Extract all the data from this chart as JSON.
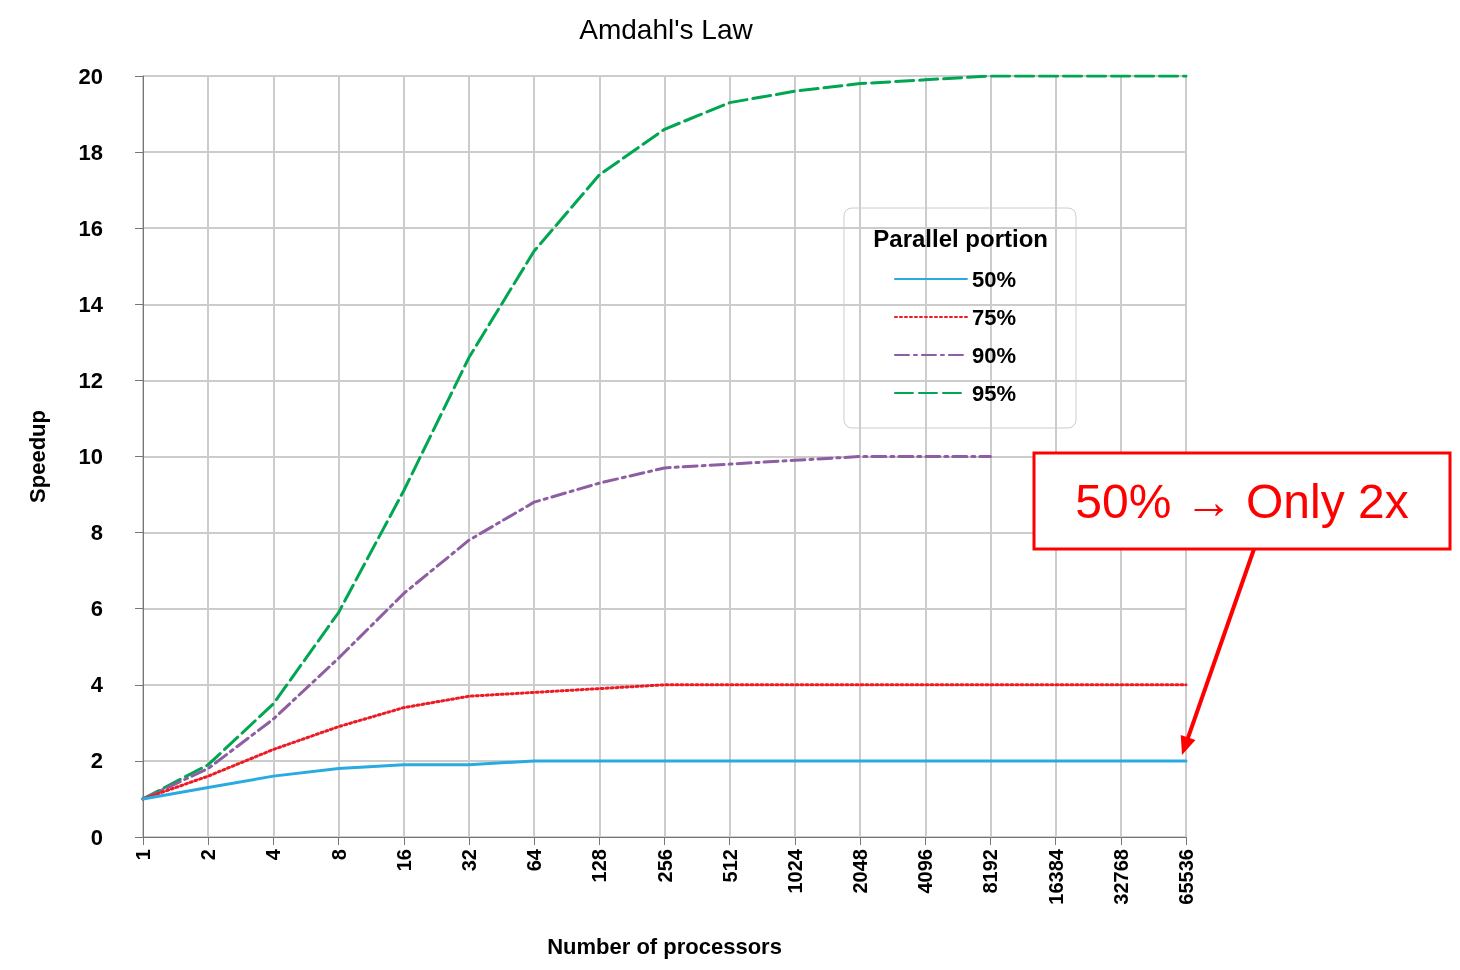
{
  "chart_data": {
    "type": "line",
    "title": "Amdahl's Law",
    "xlabel": "Number of processors",
    "ylabel": "Speedup",
    "legend_title": "Parallel portion",
    "categories": [
      "1",
      "2",
      "4",
      "8",
      "16",
      "32",
      "64",
      "128",
      "256",
      "512",
      "1024",
      "2048",
      "4096",
      "8192",
      "16384",
      "32768",
      "65536"
    ],
    "series": [
      {
        "name": "50%",
        "color": "#29abe2",
        "line_style": "solid",
        "values": [
          1,
          1.3,
          1.6,
          1.8,
          1.9,
          1.9,
          2,
          2,
          2,
          2,
          2,
          2,
          2,
          2,
          2,
          2,
          2
        ]
      },
      {
        "name": "75%",
        "color": "#ed1c24",
        "line_style": "dotted",
        "values": [
          1,
          1.6,
          2.3,
          2.9,
          3.4,
          3.7,
          3.8,
          3.9,
          4,
          4,
          4,
          4,
          4,
          4,
          4,
          4,
          4
        ]
      },
      {
        "name": "90%",
        "color": "#8e5ea2",
        "line_style": "dashdot",
        "values": [
          1,
          1.8,
          3.1,
          4.7,
          6.4,
          7.8,
          8.8,
          9.3,
          9.7,
          9.8,
          9.9,
          10,
          10,
          10,
          null,
          null,
          null
        ]
      },
      {
        "name": "95%",
        "color": "#00a651",
        "line_style": "dashed",
        "values": [
          1,
          1.9,
          3.5,
          5.9,
          9.1,
          12.6,
          15.4,
          17.4,
          18.6,
          19.3,
          19.6,
          19.8,
          19.9,
          20,
          20,
          20,
          20
        ]
      }
    ],
    "ylim": [
      0,
      20
    ],
    "yticks": [
      0,
      2,
      4,
      6,
      8,
      10,
      12,
      14,
      16,
      18,
      20
    ],
    "grid": true,
    "legend": "top right",
    "marker": "none",
    "annotations": [
      "50% → Only 2x"
    ]
  }
}
